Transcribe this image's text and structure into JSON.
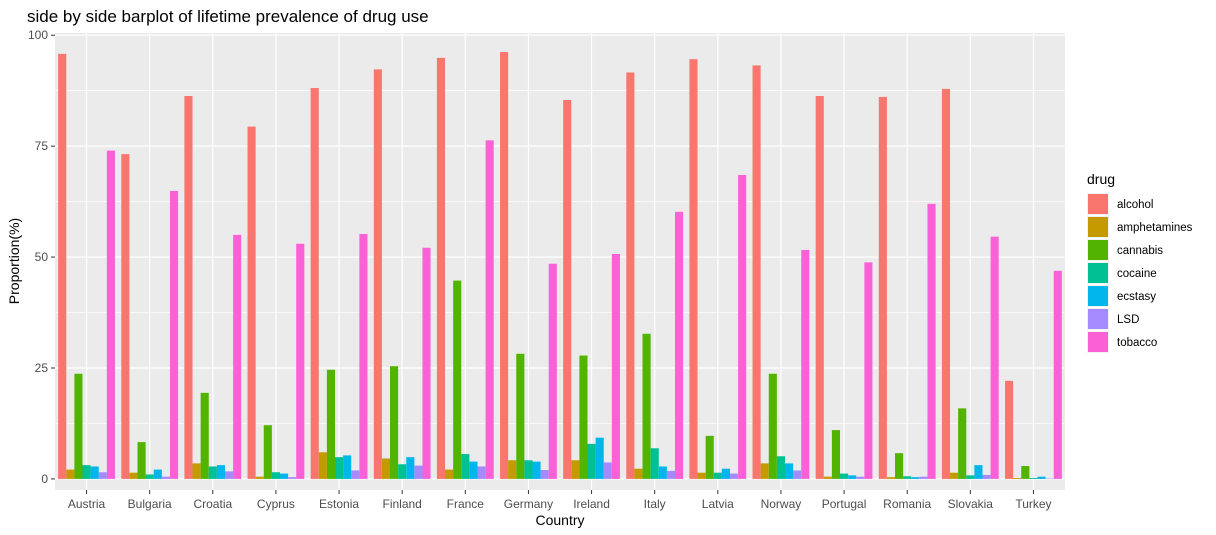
{
  "chart_data": {
    "type": "bar",
    "title": "side by side barplot of lifetime prevalence of drug use",
    "xlabel": "Country",
    "ylabel": "Proportion(%)",
    "ylim": [
      -2.5,
      100.5
    ],
    "yticks": [
      0,
      25,
      50,
      75,
      100
    ],
    "grid": true,
    "legend_position": "right",
    "legend_title": "drug",
    "categories": [
      "Austria",
      "Bulgaria",
      "Croatia",
      "Cyprus",
      "Estonia",
      "Finland",
      "France",
      "Germany",
      "Ireland",
      "Italy",
      "Latvia",
      "Norway",
      "Portugal",
      "Romania",
      "Slovakia",
      "Turkey"
    ],
    "series": [
      {
        "name": "alcohol",
        "color": "#F8766D",
        "values": [
          95.8,
          73.2,
          86.3,
          79.4,
          88.1,
          92.3,
          94.9,
          96.2,
          85.4,
          91.6,
          94.6,
          93.2,
          86.3,
          86.1,
          87.9,
          22.1
        ]
      },
      {
        "name": "amphetamines",
        "color": "#C49A00",
        "values": [
          2.1,
          1.4,
          3.5,
          0.5,
          6.0,
          4.6,
          2.1,
          4.2,
          4.2,
          2.3,
          1.4,
          3.5,
          0.5,
          0.4,
          1.4,
          0.2
        ]
      },
      {
        "name": "cannabis",
        "color": "#53B400",
        "values": [
          23.7,
          8.3,
          19.4,
          12.1,
          24.6,
          25.4,
          44.7,
          28.2,
          27.8,
          32.7,
          9.7,
          23.7,
          11.0,
          5.8,
          15.9,
          2.9
        ]
      },
      {
        "name": "cocaine",
        "color": "#00C094",
        "values": [
          3.1,
          1.0,
          2.8,
          1.5,
          4.9,
          3.3,
          5.6,
          4.2,
          7.9,
          6.9,
          1.4,
          5.1,
          1.2,
          0.6,
          0.8,
          0.2
        ]
      },
      {
        "name": "ecstasy",
        "color": "#00B6EB",
        "values": [
          2.8,
          2.1,
          3.1,
          1.2,
          5.3,
          4.9,
          3.9,
          3.9,
          9.3,
          2.8,
          2.3,
          3.5,
          0.8,
          0.4,
          3.1,
          0.5
        ]
      },
      {
        "name": "LSD",
        "color": "#A58AFF",
        "values": [
          1.5,
          0.5,
          1.7,
          0.4,
          1.9,
          3.0,
          2.8,
          2.0,
          3.7,
          1.8,
          1.2,
          1.9,
          0.5,
          0.5,
          0.9,
          0.1
        ]
      },
      {
        "name": "tobacco",
        "color": "#FB61D7",
        "values": [
          74.0,
          64.9,
          55.0,
          53.0,
          55.2,
          52.1,
          76.3,
          48.5,
          50.7,
          60.2,
          68.5,
          51.6,
          48.8,
          62.0,
          54.6,
          46.9
        ]
      }
    ]
  }
}
